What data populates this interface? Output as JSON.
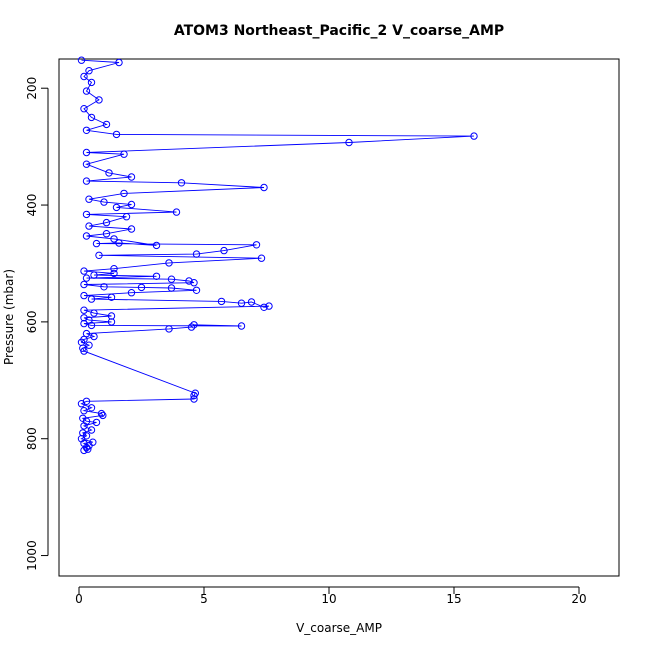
{
  "chart_data": {
    "type": "line",
    "title": "ATOM3 Northeast_Pacific_2 V_coarse_AMP",
    "xlabel": "V_coarse_AMP",
    "ylabel": "Pressure (mbar)",
    "xlim": [
      -0.8,
      21.6
    ],
    "ylim": [
      1035,
      150
    ],
    "y_reversed": true,
    "grid": false,
    "xticks": [
      0,
      5,
      10,
      15,
      20
    ],
    "yticks": [
      200,
      400,
      600,
      800,
      1000
    ],
    "series": [
      {
        "color": "#0000ff",
        "marker": "open-circle",
        "points": [
          [
            0.2,
            820
          ],
          [
            0.35,
            818
          ],
          [
            0.3,
            815
          ],
          [
            0.4,
            812
          ],
          [
            0.2,
            808
          ],
          [
            0.55,
            806
          ],
          [
            0.1,
            800
          ],
          [
            0.3,
            795
          ],
          [
            0.15,
            790
          ],
          [
            0.5,
            785
          ],
          [
            0.2,
            778
          ],
          [
            0.7,
            772
          ],
          [
            0.3,
            770
          ],
          [
            0.15,
            765
          ],
          [
            0.95,
            760
          ],
          [
            0.9,
            757
          ],
          [
            0.2,
            752
          ],
          [
            0.5,
            747
          ],
          [
            0.1,
            740
          ],
          [
            0.3,
            736
          ],
          [
            4.6,
            732
          ],
          [
            4.6,
            726
          ],
          [
            4.65,
            722
          ],
          [
            0.2,
            650
          ],
          [
            0.15,
            645
          ],
          [
            0.4,
            640
          ],
          [
            0.1,
            635
          ],
          [
            0.2,
            630
          ],
          [
            0.6,
            625
          ],
          [
            0.3,
            620
          ],
          [
            3.6,
            612
          ],
          [
            4.5,
            609
          ],
          [
            4.6,
            605
          ],
          [
            6.5,
            607
          ],
          [
            0.5,
            606
          ],
          [
            0.2,
            603
          ],
          [
            1.3,
            600
          ],
          [
            0.4,
            597
          ],
          [
            0.2,
            593
          ],
          [
            1.3,
            590
          ],
          [
            0.6,
            585
          ],
          [
            0.2,
            580
          ],
          [
            7.6,
            573
          ],
          [
            7.4,
            575
          ],
          [
            6.9,
            566
          ],
          [
            6.5,
            568
          ],
          [
            5.7,
            565
          ],
          [
            0.5,
            561
          ],
          [
            1.3,
            558
          ],
          [
            0.2,
            555
          ],
          [
            2.1,
            550
          ],
          [
            4.7,
            546
          ],
          [
            3.7,
            542
          ],
          [
            2.5,
            541
          ],
          [
            1.0,
            540
          ],
          [
            0.2,
            536
          ],
          [
            4.6,
            533
          ],
          [
            4.4,
            530
          ],
          [
            3.7,
            527
          ],
          [
            0.3,
            525
          ],
          [
            3.1,
            522
          ],
          [
            0.6,
            520
          ],
          [
            1.4,
            517
          ],
          [
            0.2,
            513
          ],
          [
            1.4,
            509
          ],
          [
            3.6,
            499
          ],
          [
            7.3,
            491
          ],
          [
            0.8,
            486
          ],
          [
            4.7,
            484
          ],
          [
            5.8,
            478
          ],
          [
            7.1,
            468
          ],
          [
            0.7,
            466
          ],
          [
            1.6,
            465
          ],
          [
            3.1,
            469
          ],
          [
            1.4,
            458
          ],
          [
            0.3,
            453
          ],
          [
            1.1,
            449
          ],
          [
            2.1,
            441
          ],
          [
            0.4,
            436
          ],
          [
            1.1,
            430
          ],
          [
            1.9,
            420
          ],
          [
            0.3,
            416
          ],
          [
            3.9,
            412
          ],
          [
            1.5,
            404
          ],
          [
            2.1,
            399
          ],
          [
            1.0,
            395
          ],
          [
            0.4,
            390
          ],
          [
            1.8,
            380
          ],
          [
            7.4,
            370
          ],
          [
            4.1,
            362
          ],
          [
            0.3,
            359
          ],
          [
            2.1,
            352
          ],
          [
            1.2,
            345
          ],
          [
            0.3,
            330
          ],
          [
            1.8,
            313
          ],
          [
            0.3,
            310
          ],
          [
            10.8,
            293
          ],
          [
            15.8,
            282
          ],
          [
            1.5,
            279
          ],
          [
            0.3,
            272
          ],
          [
            1.1,
            262
          ],
          [
            0.5,
            250
          ],
          [
            0.2,
            235
          ],
          [
            0.8,
            220
          ],
          [
            0.3,
            205
          ],
          [
            0.5,
            190
          ],
          [
            0.2,
            180
          ],
          [
            0.4,
            170
          ],
          [
            1.6,
            156
          ],
          [
            0.1,
            152
          ]
        ]
      }
    ]
  }
}
